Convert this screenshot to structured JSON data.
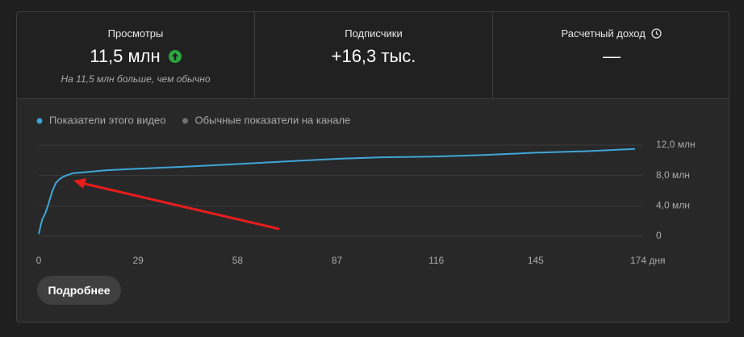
{
  "metrics": [
    {
      "label": "Просмотры",
      "value": "11,5 млн",
      "note": "На 11,5 млн больше, чем обычно"
    },
    {
      "label": "Подписчики",
      "value": "+16,3 тыс."
    },
    {
      "label": "Расчетный доход",
      "value": "—"
    }
  ],
  "chart_data": {
    "type": "line",
    "x": [
      0,
      1,
      2,
      3,
      4,
      5,
      6,
      7,
      8,
      10,
      15,
      20,
      29,
      40,
      58,
      70,
      87,
      100,
      116,
      130,
      145,
      160,
      174
    ],
    "series": [
      {
        "name": "Показатели этого видео",
        "color": "#3ea6d8",
        "values": [
          0.3,
          2.2,
          3.1,
          4.5,
          6.0,
          7.0,
          7.5,
          7.8,
          8.0,
          8.3,
          8.5,
          8.7,
          8.9,
          9.1,
          9.5,
          9.8,
          10.2,
          10.4,
          10.5,
          10.7,
          11.0,
          11.2,
          11.5
        ]
      },
      {
        "name": "Обычные показатели на канале",
        "color": "#717171",
        "values": [
          null,
          null,
          null,
          null,
          null,
          null,
          null,
          null,
          null,
          null,
          null,
          null,
          null,
          null,
          null,
          null,
          null,
          null,
          null,
          null,
          null,
          null,
          null
        ]
      }
    ],
    "xlim": [
      0,
      174
    ],
    "xticks": [
      0,
      29,
      58,
      87,
      116,
      145,
      {
        "value": 174,
        "label": "174 дня"
      }
    ],
    "ylim": [
      0,
      12
    ],
    "yticks": [
      0,
      {
        "value": 4,
        "label": "4,0 млн"
      },
      {
        "value": 8,
        "label": "8,0 млн"
      },
      {
        "value": 12,
        "label": "12,0 млн"
      }
    ],
    "grid": true
  },
  "button": "Подробнее"
}
